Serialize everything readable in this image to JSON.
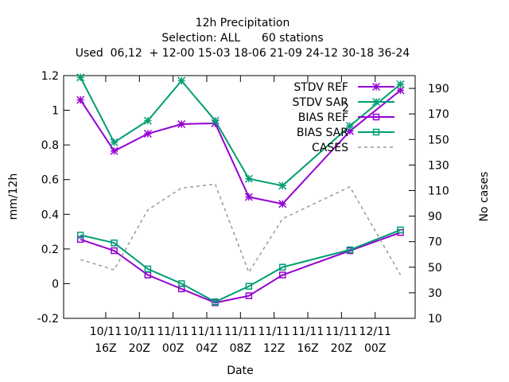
{
  "chart_data": {
    "type": "line",
    "title": "12h Precipitation",
    "subtitle_lines": [
      "Selection: ALL      60 stations",
      "Used  06,12  + 12-00 15-03 18-06 21-09 24-12 30-18 36-24"
    ],
    "xlabel": "Date",
    "ylabel": "mm/12h",
    "y2label": "No cases",
    "x_range_hours": [
      0,
      80
    ],
    "x_ticks": [
      {
        "hour": 0,
        "line1": "10/11",
        "line2": "16Z"
      },
      {
        "hour": 8,
        "line1": "10/11",
        "line2": "20Z"
      },
      {
        "hour": 16,
        "line1": "11/11",
        "line2": "00Z"
      },
      {
        "hour": 24,
        "line1": "11/11",
        "line2": "04Z"
      },
      {
        "hour": 32,
        "line1": "11/11",
        "line2": "08Z"
      },
      {
        "hour": 40,
        "line1": "11/11",
        "line2": "12Z"
      },
      {
        "hour": 48,
        "line1": "11/11",
        "line2": "16Z"
      },
      {
        "hour": 56,
        "line1": "11/11",
        "line2": "20Z"
      },
      {
        "hour": 64,
        "line1": "12/11",
        "line2": "00Z"
      }
    ],
    "ylim": [
      -0.2,
      1.2
    ],
    "yticks": [
      "-0.2",
      "0",
      "0.2",
      "0.4",
      "0.6",
      "0.8",
      "1",
      "1.2"
    ],
    "y2lim": [
      10,
      200
    ],
    "y2ticks": [
      "10",
      "30",
      "50",
      "70",
      "90",
      "110",
      "130",
      "150",
      "170",
      "190"
    ],
    "x_hours": [
      -6,
      2,
      10,
      18,
      26,
      34,
      42,
      58,
      70
    ],
    "series": [
      {
        "name": "STDV REF",
        "axis": "y",
        "marker": "x-star",
        "color": "#9400d3",
        "values": [
          1.06,
          0.765,
          0.865,
          0.92,
          0.925,
          0.5,
          0.46,
          0.88,
          1.115
        ]
      },
      {
        "name": "STDV SAR",
        "name_subscript": "2",
        "axis": "y",
        "marker": "x-star",
        "color": "#009e73",
        "values": [
          1.19,
          0.815,
          0.94,
          1.17,
          0.94,
          0.605,
          0.565,
          0.91,
          1.15
        ]
      },
      {
        "name": "BIAS REF",
        "axis": "y",
        "marker": "open-square",
        "color": "#9400d3",
        "values": [
          0.255,
          0.19,
          0.05,
          -0.03,
          -0.11,
          -0.07,
          0.05,
          0.19,
          0.295
        ]
      },
      {
        "name": "BIAS SAR",
        "axis": "y",
        "marker": "open-square",
        "color": "#009e73",
        "values": [
          0.28,
          0.235,
          0.085,
          0.0,
          -0.105,
          -0.015,
          0.095,
          0.195,
          0.31
        ]
      },
      {
        "name": "CASES",
        "axis": "y2",
        "marker": "none",
        "dash": true,
        "color": "#999999",
        "values": [
          56,
          48,
          95,
          112,
          115,
          46,
          88,
          113,
          44
        ]
      }
    ],
    "legend_position": "top-right",
    "grid": false
  }
}
